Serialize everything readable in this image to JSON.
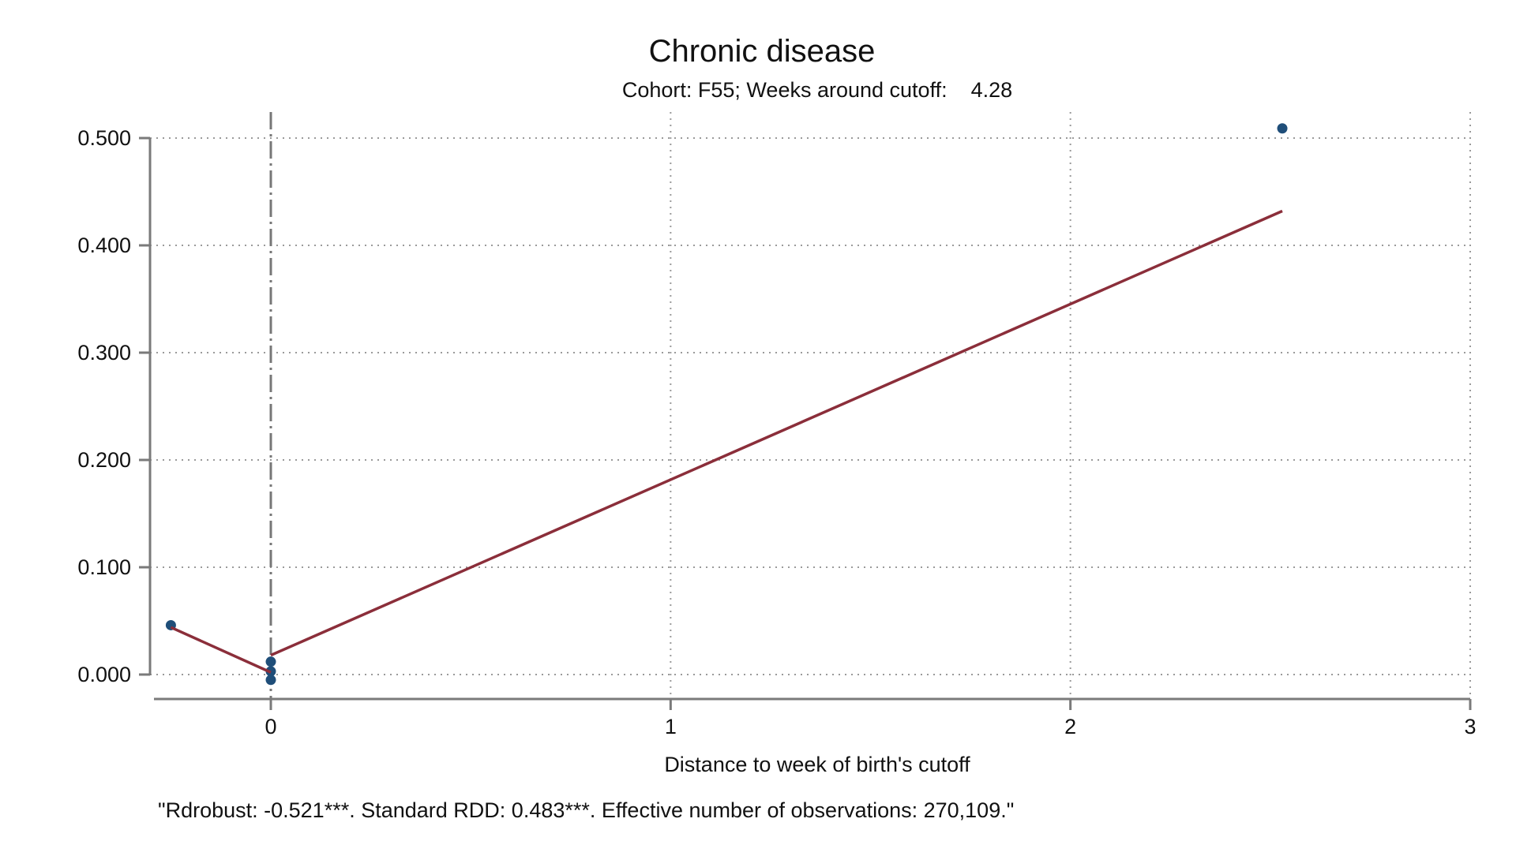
{
  "chart_data": {
    "type": "scatter",
    "title": "Chronic disease",
    "subtitle": "Cohort: F55; Weeks around cutoff:    4.28",
    "xlabel": "Distance to week of birth's cutoff",
    "ylabel": "",
    "note": "\"Rdrobust: -0.521***. Standard RDD: 0.483***. Effective number of observations: 270,109.\"",
    "xlim": [
      -0.3,
      3
    ],
    "ylim": [
      -0.02,
      0.5
    ],
    "x_ticks": [
      0,
      1,
      2,
      3
    ],
    "x_tick_labels": [
      "0",
      "1",
      "2",
      "3"
    ],
    "y_ticks": [
      0,
      0.1,
      0.2,
      0.3,
      0.4,
      0.5
    ],
    "y_tick_labels": [
      "0.000",
      "0.100",
      "0.200",
      "0.300",
      "0.400",
      "0.500"
    ],
    "grid": true,
    "cutoff_line_x": 0,
    "series": [
      {
        "kind": "points",
        "color": "#1f4e79",
        "x": [
          -0.25,
          0.0,
          0.0,
          0.0,
          2.53
        ],
        "y": [
          0.046,
          0.012,
          0.003,
          -0.005,
          0.509
        ]
      },
      {
        "kind": "fit-left",
        "color": "#8b2e3a",
        "x": [
          -0.25,
          0.0
        ],
        "y": [
          0.044,
          0.002
        ]
      },
      {
        "kind": "fit-right",
        "color": "#8b2e3a",
        "x": [
          0.0,
          2.53
        ],
        "y": [
          0.018,
          0.432
        ]
      }
    ]
  }
}
